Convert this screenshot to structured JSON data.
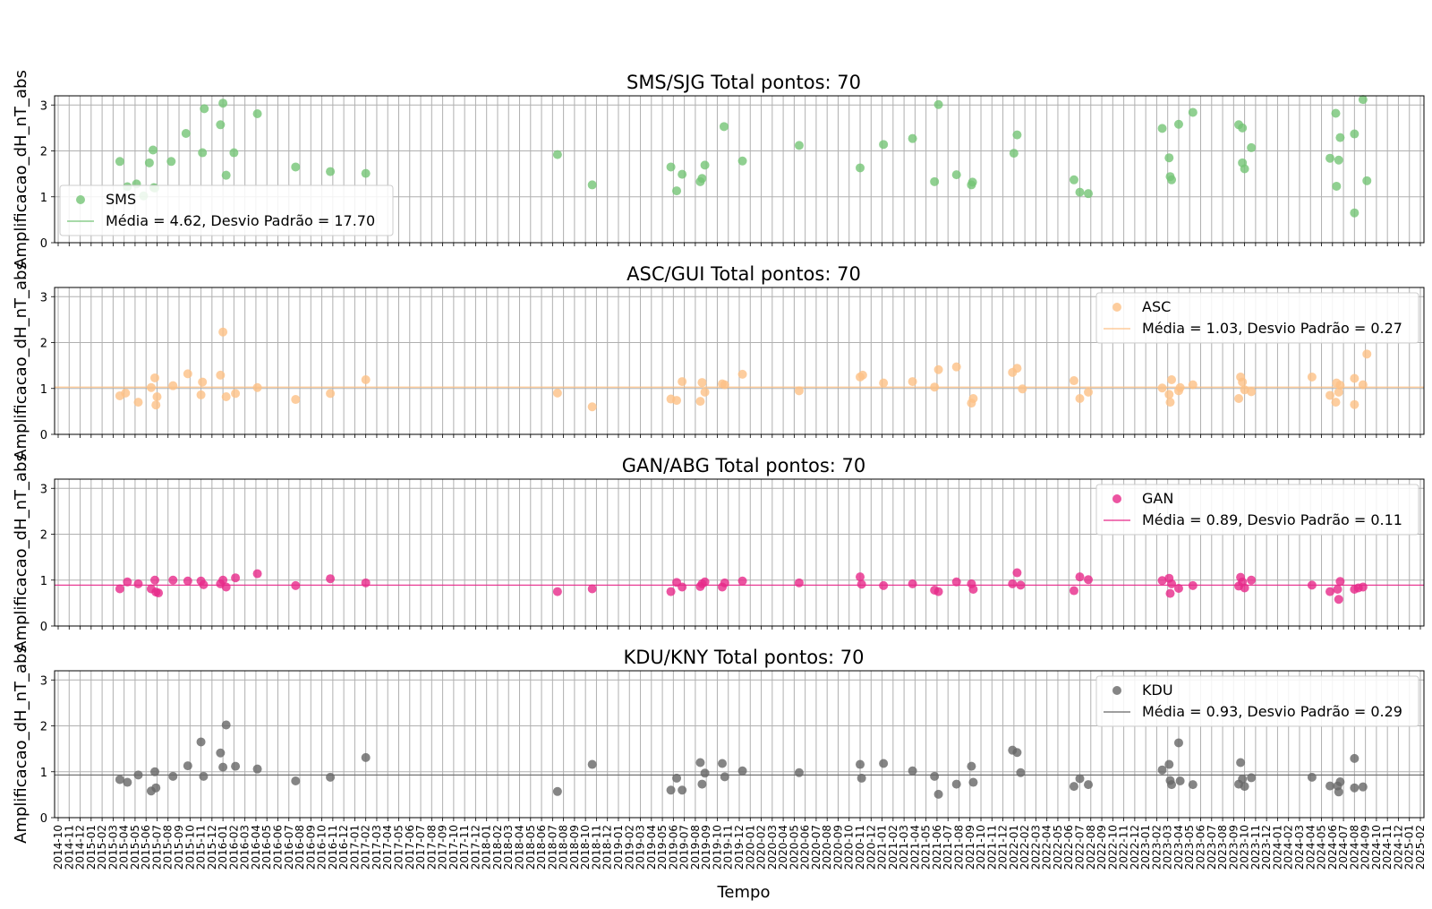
{
  "chart_data": [
    {
      "type": "scatter",
      "title": "SMS/SJG  Total pontos: 70",
      "ylabel": "Amplificacao_dH_nT_abs",
      "ylim": [
        0,
        3.2
      ],
      "yticks": [
        "0",
        "1",
        "2",
        "3"
      ],
      "color": "#74c476",
      "legend": {
        "placement": "lower-left",
        "series_label": "SMS",
        "line_label": "Média = 4.62, Desvio Padrão = 17.70"
      },
      "mean_line": 4.62,
      "points": [
        [
          "2015-03-20",
          1.77
        ],
        [
          "2015-04-10",
          1.22
        ],
        [
          "2015-05-05",
          1.28
        ],
        [
          "2015-05-25",
          1.02
        ],
        [
          "2015-06-10",
          1.74
        ],
        [
          "2015-06-20",
          2.02
        ],
        [
          "2015-06-22",
          1.2
        ],
        [
          "2015-06-25",
          1.19
        ],
        [
          "2015-08-10",
          1.77
        ],
        [
          "2015-09-20",
          2.38
        ],
        [
          "2015-11-10",
          2.92
        ],
        [
          "2015-11-05",
          1.96
        ],
        [
          "2015-12-25",
          2.57
        ],
        [
          "2016-01-01",
          3.04
        ],
        [
          "2016-01-10",
          1.47
        ],
        [
          "2016-02-01",
          1.96
        ],
        [
          "2016-04-05",
          2.81
        ],
        [
          "2016-07-20",
          1.65
        ],
        [
          "2016-10-25",
          1.55
        ],
        [
          "2017-02-01",
          1.51
        ],
        [
          "2018-07-15",
          1.92
        ],
        [
          "2018-10-20",
          1.26
        ],
        [
          "2019-05-25",
          1.65
        ],
        [
          "2019-06-10",
          1.13
        ],
        [
          "2019-06-25",
          1.49
        ],
        [
          "2019-08-15",
          1.33
        ],
        [
          "2019-08-20",
          1.4
        ],
        [
          "2019-08-28",
          1.69
        ],
        [
          "2019-10-20",
          2.53
        ],
        [
          "2019-12-10",
          1.78
        ],
        [
          "2020-05-15",
          2.12
        ],
        [
          "2020-11-01",
          1.63
        ],
        [
          "2021-01-05",
          2.14
        ],
        [
          "2021-03-25",
          2.27
        ],
        [
          "2021-05-25",
          1.33
        ],
        [
          "2021-06-05",
          3.01
        ],
        [
          "2021-07-25",
          1.48
        ],
        [
          "2021-09-05",
          1.26
        ],
        [
          "2021-09-08",
          1.32
        ],
        [
          "2022-01-01",
          1.95
        ],
        [
          "2022-01-10",
          2.35
        ],
        [
          "2022-06-15",
          1.37
        ],
        [
          "2022-07-01",
          1.1
        ],
        [
          "2022-07-25",
          1.07
        ],
        [
          "2023-02-15",
          2.49
        ],
        [
          "2023-03-05",
          1.85
        ],
        [
          "2023-03-08",
          1.44
        ],
        [
          "2023-03-12",
          1.37
        ],
        [
          "2023-04-01",
          2.58
        ],
        [
          "2023-05-10",
          2.84
        ],
        [
          "2023-09-15",
          2.57
        ],
        [
          "2023-09-25",
          2.5
        ],
        [
          "2023-09-25",
          1.74
        ],
        [
          "2023-10-01",
          1.61
        ],
        [
          "2023-10-20",
          2.07
        ],
        [
          "2024-05-25",
          1.84
        ],
        [
          "2024-06-10",
          2.82
        ],
        [
          "2024-06-12",
          1.23
        ],
        [
          "2024-06-18",
          1.8
        ],
        [
          "2024-06-22",
          2.29
        ],
        [
          "2024-08-01",
          2.37
        ],
        [
          "2024-08-01",
          0.65
        ],
        [
          "2024-08-25",
          3.12
        ],
        [
          "2024-09-05",
          1.35
        ]
      ]
    },
    {
      "type": "scatter",
      "title": "ASC/GUI  Total pontos: 70",
      "ylabel": "Amplificacao_dH_nT_abs",
      "ylim": [
        0,
        3.2
      ],
      "yticks": [
        "0",
        "1",
        "2",
        "3"
      ],
      "color": "#fdc086",
      "legend": {
        "placement": "upper-right",
        "series_label": "ASC",
        "line_label": "Média = 1.03, Desvio Padrão = 0.27"
      },
      "mean_line": 1.03,
      "points": [
        [
          "2015-03-20",
          0.84
        ],
        [
          "2015-04-05",
          0.9
        ],
        [
          "2015-05-10",
          0.7
        ],
        [
          "2015-06-15",
          1.02
        ],
        [
          "2015-06-25",
          1.23
        ],
        [
          "2015-06-28",
          0.64
        ],
        [
          "2015-07-01",
          0.82
        ],
        [
          "2015-08-15",
          1.06
        ],
        [
          "2015-09-25",
          1.32
        ],
        [
          "2015-11-01",
          0.86
        ],
        [
          "2015-11-05",
          1.14
        ],
        [
          "2015-12-25",
          1.29
        ],
        [
          "2016-01-01",
          2.23
        ],
        [
          "2016-01-10",
          0.82
        ],
        [
          "2016-02-05",
          0.89
        ],
        [
          "2016-04-05",
          1.02
        ],
        [
          "2016-07-20",
          0.76
        ],
        [
          "2016-10-25",
          0.89
        ],
        [
          "2017-02-01",
          1.19
        ],
        [
          "2018-07-15",
          0.9
        ],
        [
          "2018-10-20",
          0.6
        ],
        [
          "2019-05-25",
          0.77
        ],
        [
          "2019-06-10",
          0.74
        ],
        [
          "2019-06-25",
          1.15
        ],
        [
          "2019-08-15",
          0.72
        ],
        [
          "2019-08-20",
          1.13
        ],
        [
          "2019-08-28",
          0.92
        ],
        [
          "2019-10-15",
          1.1
        ],
        [
          "2019-10-22",
          1.08
        ],
        [
          "2019-12-10",
          1.31
        ],
        [
          "2020-05-15",
          0.95
        ],
        [
          "2020-11-01",
          1.25
        ],
        [
          "2020-11-08",
          1.29
        ],
        [
          "2021-01-05",
          1.12
        ],
        [
          "2021-03-25",
          1.15
        ],
        [
          "2021-05-25",
          1.03
        ],
        [
          "2021-06-05",
          1.41
        ],
        [
          "2021-07-25",
          1.47
        ],
        [
          "2021-09-05",
          0.68
        ],
        [
          "2021-09-10",
          0.78
        ],
        [
          "2021-12-28",
          1.35
        ],
        [
          "2022-01-10",
          1.44
        ],
        [
          "2022-01-25",
          0.99
        ],
        [
          "2022-06-15",
          1.17
        ],
        [
          "2022-07-01",
          0.78
        ],
        [
          "2022-07-25",
          0.92
        ],
        [
          "2023-02-15",
          1.01
        ],
        [
          "2023-03-05",
          0.87
        ],
        [
          "2023-03-08",
          0.7
        ],
        [
          "2023-03-12",
          1.19
        ],
        [
          "2023-04-01",
          0.95
        ],
        [
          "2023-04-05",
          1.02
        ],
        [
          "2023-05-10",
          1.08
        ],
        [
          "2023-09-15",
          0.78
        ],
        [
          "2023-09-20",
          1.25
        ],
        [
          "2023-09-25",
          1.14
        ],
        [
          "2023-10-01",
          0.97
        ],
        [
          "2023-10-20",
          0.93
        ],
        [
          "2024-04-05",
          1.25
        ],
        [
          "2024-05-25",
          0.85
        ],
        [
          "2024-06-10",
          0.7
        ],
        [
          "2024-06-12",
          1.12
        ],
        [
          "2024-06-18",
          0.92
        ],
        [
          "2024-06-22",
          1.07
        ],
        [
          "2024-08-01",
          1.22
        ],
        [
          "2024-08-01",
          0.65
        ],
        [
          "2024-08-25",
          1.08
        ],
        [
          "2024-09-05",
          1.75
        ]
      ]
    },
    {
      "type": "scatter",
      "title": "GAN/ABG  Total pontos: 70",
      "ylabel": "Amplificacao_dH_nT_abs",
      "ylim": [
        0,
        3.2
      ],
      "yticks": [
        "0",
        "1",
        "2",
        "3"
      ],
      "color": "#e7298a",
      "legend": {
        "placement": "upper-right",
        "series_label": "GAN",
        "line_label": "Média = 0.89, Desvio Padrão = 0.11"
      },
      "mean_line": 0.89,
      "points": [
        [
          "2015-03-20",
          0.81
        ],
        [
          "2015-04-10",
          0.96
        ],
        [
          "2015-05-10",
          0.92
        ],
        [
          "2015-06-15",
          0.81
        ],
        [
          "2015-06-25",
          1.0
        ],
        [
          "2015-06-28",
          0.74
        ],
        [
          "2015-07-05",
          0.72
        ],
        [
          "2015-08-15",
          1.0
        ],
        [
          "2015-09-25",
          0.98
        ],
        [
          "2015-11-01",
          0.98
        ],
        [
          "2015-11-08",
          0.9
        ],
        [
          "2015-12-25",
          0.92
        ],
        [
          "2016-01-01",
          1.0
        ],
        [
          "2016-01-10",
          0.85
        ],
        [
          "2016-02-05",
          1.05
        ],
        [
          "2016-04-05",
          1.14
        ],
        [
          "2016-07-20",
          0.88
        ],
        [
          "2016-10-25",
          1.03
        ],
        [
          "2017-02-01",
          0.94
        ],
        [
          "2018-07-15",
          0.75
        ],
        [
          "2018-10-20",
          0.81
        ],
        [
          "2019-05-25",
          0.75
        ],
        [
          "2019-06-10",
          0.95
        ],
        [
          "2019-06-25",
          0.85
        ],
        [
          "2019-08-15",
          0.86
        ],
        [
          "2019-08-20",
          0.92
        ],
        [
          "2019-08-28",
          0.96
        ],
        [
          "2019-10-15",
          0.85
        ],
        [
          "2019-10-22",
          0.94
        ],
        [
          "2019-12-10",
          0.98
        ],
        [
          "2020-05-15",
          0.94
        ],
        [
          "2020-11-01",
          1.07
        ],
        [
          "2020-11-05",
          0.91
        ],
        [
          "2021-01-05",
          0.88
        ],
        [
          "2021-03-25",
          0.92
        ],
        [
          "2021-05-25",
          0.78
        ],
        [
          "2021-06-05",
          0.75
        ],
        [
          "2021-07-25",
          0.96
        ],
        [
          "2021-09-05",
          0.92
        ],
        [
          "2021-09-10",
          0.8
        ],
        [
          "2021-12-28",
          0.92
        ],
        [
          "2022-01-10",
          1.16
        ],
        [
          "2022-01-20",
          0.89
        ],
        [
          "2022-06-15",
          0.77
        ],
        [
          "2022-07-01",
          1.07
        ],
        [
          "2022-07-25",
          1.01
        ],
        [
          "2023-02-15",
          0.99
        ],
        [
          "2023-03-05",
          1.04
        ],
        [
          "2023-03-08",
          0.71
        ],
        [
          "2023-03-12",
          0.92
        ],
        [
          "2023-04-01",
          0.82
        ],
        [
          "2023-05-10",
          0.88
        ],
        [
          "2023-09-15",
          0.87
        ],
        [
          "2023-09-20",
          1.06
        ],
        [
          "2023-09-25",
          0.96
        ],
        [
          "2023-10-01",
          0.83
        ],
        [
          "2023-10-20",
          1.0
        ],
        [
          "2024-04-05",
          0.89
        ],
        [
          "2024-05-25",
          0.75
        ],
        [
          "2024-06-15",
          0.8
        ],
        [
          "2024-06-18",
          0.58
        ],
        [
          "2024-06-22",
          0.97
        ],
        [
          "2024-08-01",
          0.8
        ],
        [
          "2024-08-12",
          0.83
        ],
        [
          "2024-08-25",
          0.85
        ]
      ]
    },
    {
      "type": "scatter",
      "title": "KDU/KNY  Total pontos: 70",
      "ylabel": "Amplificacao_dH_nT_abs",
      "xlabel": "Tempo",
      "ylim": [
        0,
        3.2
      ],
      "yticks": [
        "0",
        "1",
        "2",
        "3"
      ],
      "color": "#666666",
      "legend": {
        "placement": "upper-right",
        "series_label": "KDU",
        "line_label": "Média = 0.93, Desvio Padrão = 0.29"
      },
      "mean_line": 0.93,
      "points": [
        [
          "2015-03-20",
          0.83
        ],
        [
          "2015-04-10",
          0.77
        ],
        [
          "2015-05-10",
          0.93
        ],
        [
          "2015-06-15",
          0.58
        ],
        [
          "2015-06-25",
          1.0
        ],
        [
          "2015-06-28",
          0.65
        ],
        [
          "2015-08-15",
          0.9
        ],
        [
          "2015-09-25",
          1.13
        ],
        [
          "2015-11-01",
          1.65
        ],
        [
          "2015-11-08",
          0.9
        ],
        [
          "2015-12-25",
          1.41
        ],
        [
          "2016-01-01",
          1.1
        ],
        [
          "2016-01-10",
          2.02
        ],
        [
          "2016-02-05",
          1.12
        ],
        [
          "2016-04-05",
          1.06
        ],
        [
          "2016-07-20",
          0.8
        ],
        [
          "2016-10-25",
          0.88
        ],
        [
          "2017-02-01",
          1.31
        ],
        [
          "2018-07-15",
          0.57
        ],
        [
          "2018-10-20",
          1.16
        ],
        [
          "2019-05-25",
          0.6
        ],
        [
          "2019-06-10",
          0.86
        ],
        [
          "2019-06-25",
          0.6
        ],
        [
          "2019-08-15",
          1.2
        ],
        [
          "2019-08-20",
          0.73
        ],
        [
          "2019-08-28",
          0.97
        ],
        [
          "2019-10-15",
          1.18
        ],
        [
          "2019-10-22",
          0.89
        ],
        [
          "2019-12-10",
          1.02
        ],
        [
          "2020-05-15",
          0.98
        ],
        [
          "2020-11-01",
          1.16
        ],
        [
          "2020-11-05",
          0.86
        ],
        [
          "2021-01-05",
          1.18
        ],
        [
          "2021-03-25",
          1.02
        ],
        [
          "2021-05-25",
          0.9
        ],
        [
          "2021-06-05",
          0.51
        ],
        [
          "2021-07-25",
          0.73
        ],
        [
          "2021-09-05",
          1.12
        ],
        [
          "2021-09-10",
          0.77
        ],
        [
          "2021-12-28",
          1.47
        ],
        [
          "2022-01-10",
          1.42
        ],
        [
          "2022-01-20",
          0.98
        ],
        [
          "2022-06-15",
          0.68
        ],
        [
          "2022-07-01",
          0.85
        ],
        [
          "2022-07-25",
          0.72
        ],
        [
          "2023-02-15",
          1.04
        ],
        [
          "2023-03-05",
          1.16
        ],
        [
          "2023-03-08",
          0.81
        ],
        [
          "2023-03-12",
          0.72
        ],
        [
          "2023-04-01",
          1.63
        ],
        [
          "2023-04-05",
          0.8
        ],
        [
          "2023-05-10",
          0.72
        ],
        [
          "2023-09-15",
          0.73
        ],
        [
          "2023-09-20",
          1.2
        ],
        [
          "2023-09-25",
          0.84
        ],
        [
          "2023-10-01",
          0.68
        ],
        [
          "2023-10-20",
          0.87
        ],
        [
          "2024-04-05",
          0.88
        ],
        [
          "2024-05-25",
          0.69
        ],
        [
          "2024-06-15",
          0.69
        ],
        [
          "2024-06-18",
          0.56
        ],
        [
          "2024-06-22",
          0.78
        ],
        [
          "2024-08-01",
          1.29
        ],
        [
          "2024-08-01",
          0.65
        ],
        [
          "2024-08-25",
          0.67
        ]
      ]
    }
  ],
  "x_axis": {
    "label": "Tempo",
    "start": "2014-10",
    "end": "2025-02",
    "tick_format": "YYYY-MM",
    "grid": true
  }
}
